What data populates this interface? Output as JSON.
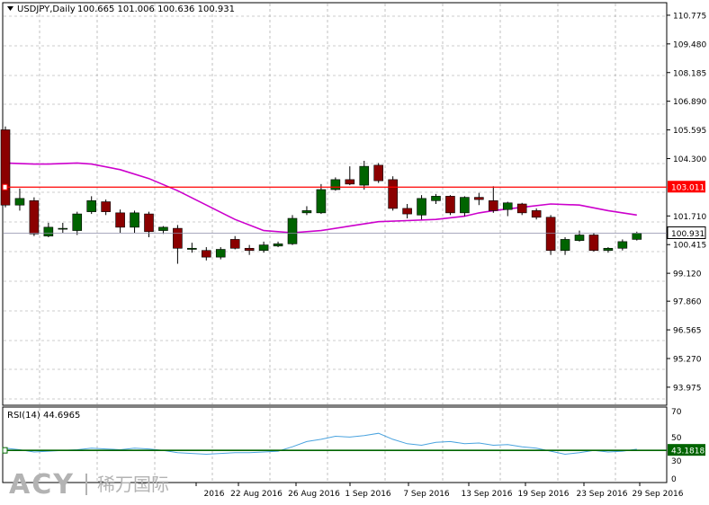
{
  "header": {
    "symbol_line": "USDJPY,Daily",
    "ohlc": "100.665 101.006 100.636 100.931"
  },
  "rsi": {
    "title": "RSI(14) 44.6965",
    "value_tag": "43.1818",
    "levels": [
      "70",
      "50",
      "30",
      "0"
    ]
  },
  "watermark": {
    "brand": "ACY",
    "chinese": "稀万国际"
  },
  "colors": {
    "bull": "#006400",
    "bear": "#8b0000",
    "wick": "#000000",
    "ma": "#cc00cc",
    "resistance": "#ff0000",
    "rsi_line": "#4aa3df",
    "rsi_level": "#006400",
    "grid": "#9a9a9a"
  },
  "chart_data": {
    "type": "candlestick",
    "y_ticks": [
      "110.775",
      "109.480",
      "108.185",
      "106.890",
      "105.595",
      "104.300",
      "103.011",
      "101.710",
      "100.931",
      "100.415",
      "99.120",
      "97.860",
      "96.565",
      "95.270",
      "93.975"
    ],
    "x_ticks": [
      "2016",
      "22 Aug 2016",
      "26 Aug 2016",
      "1 Sep 2016",
      "7 Sep 2016",
      "13 Sep 2016",
      "19 Sep 2016",
      "23 Sep 2016",
      "29 Sep 2016"
    ],
    "ylim": [
      93.2,
      111.3
    ],
    "resistance_level": 103.011,
    "current_price": 100.931,
    "candles": [
      {
        "o": 105.6,
        "h": 105.75,
        "l": 102.1,
        "c": 102.2
      },
      {
        "o": 102.2,
        "h": 102.95,
        "l": 101.95,
        "c": 102.5
      },
      {
        "o": 102.4,
        "h": 102.55,
        "l": 100.8,
        "c": 100.9
      },
      {
        "o": 100.8,
        "h": 101.4,
        "l": 100.75,
        "c": 101.2
      },
      {
        "o": 101.15,
        "h": 101.4,
        "l": 100.95,
        "c": 101.15
      },
      {
        "o": 101.05,
        "h": 101.9,
        "l": 100.85,
        "c": 101.8
      },
      {
        "o": 101.9,
        "h": 102.6,
        "l": 101.8,
        "c": 102.4
      },
      {
        "o": 102.35,
        "h": 102.45,
        "l": 101.75,
        "c": 101.9
      },
      {
        "o": 101.85,
        "h": 102.0,
        "l": 100.95,
        "c": 101.2
      },
      {
        "o": 101.2,
        "h": 101.95,
        "l": 100.95,
        "c": 101.85
      },
      {
        "o": 101.8,
        "h": 101.9,
        "l": 100.75,
        "c": 101.0
      },
      {
        "o": 101.05,
        "h": 101.25,
        "l": 100.9,
        "c": 101.2
      },
      {
        "o": 101.15,
        "h": 101.3,
        "l": 99.55,
        "c": 100.25
      },
      {
        "o": 100.2,
        "h": 100.5,
        "l": 100.05,
        "c": 100.25
      },
      {
        "o": 100.15,
        "h": 100.3,
        "l": 99.7,
        "c": 99.85
      },
      {
        "o": 99.85,
        "h": 100.3,
        "l": 99.75,
        "c": 100.2
      },
      {
        "o": 100.65,
        "h": 100.8,
        "l": 100.2,
        "c": 100.25
      },
      {
        "o": 100.25,
        "h": 100.4,
        "l": 99.95,
        "c": 100.15
      },
      {
        "o": 100.15,
        "h": 100.55,
        "l": 100.05,
        "c": 100.4
      },
      {
        "o": 100.35,
        "h": 100.55,
        "l": 100.3,
        "c": 100.45
      },
      {
        "o": 100.45,
        "h": 101.75,
        "l": 100.4,
        "c": 101.6
      },
      {
        "o": 101.85,
        "h": 102.15,
        "l": 101.75,
        "c": 101.95
      },
      {
        "o": 101.85,
        "h": 103.15,
        "l": 101.8,
        "c": 102.9
      },
      {
        "o": 102.9,
        "h": 103.45,
        "l": 102.85,
        "c": 103.35
      },
      {
        "o": 103.35,
        "h": 103.95,
        "l": 103.1,
        "c": 103.15
      },
      {
        "o": 103.1,
        "h": 104.2,
        "l": 102.9,
        "c": 103.95
      },
      {
        "o": 104.0,
        "h": 104.1,
        "l": 103.2,
        "c": 103.3
      },
      {
        "o": 103.35,
        "h": 103.5,
        "l": 101.95,
        "c": 102.05
      },
      {
        "o": 102.05,
        "h": 102.25,
        "l": 101.6,
        "c": 101.8
      },
      {
        "o": 101.75,
        "h": 102.65,
        "l": 101.55,
        "c": 102.5
      },
      {
        "o": 102.4,
        "h": 102.7,
        "l": 102.25,
        "c": 102.6
      },
      {
        "o": 102.6,
        "h": 102.65,
        "l": 101.75,
        "c": 101.85
      },
      {
        "o": 101.85,
        "h": 102.6,
        "l": 101.7,
        "c": 102.55
      },
      {
        "o": 102.55,
        "h": 102.75,
        "l": 102.2,
        "c": 102.45
      },
      {
        "o": 102.4,
        "h": 103.05,
        "l": 101.85,
        "c": 101.95
      },
      {
        "o": 102.0,
        "h": 102.35,
        "l": 101.7,
        "c": 102.3
      },
      {
        "o": 102.25,
        "h": 102.3,
        "l": 101.75,
        "c": 101.85
      },
      {
        "o": 101.95,
        "h": 102.05,
        "l": 101.55,
        "c": 101.65
      },
      {
        "o": 101.65,
        "h": 101.75,
        "l": 99.95,
        "c": 100.15
      },
      {
        "o": 100.15,
        "h": 100.75,
        "l": 99.95,
        "c": 100.65
      },
      {
        "o": 100.6,
        "h": 101.05,
        "l": 100.55,
        "c": 100.85
      },
      {
        "o": 100.85,
        "h": 100.95,
        "l": 100.1,
        "c": 100.15
      },
      {
        "o": 100.15,
        "h": 100.3,
        "l": 100.05,
        "c": 100.25
      },
      {
        "o": 100.25,
        "h": 100.65,
        "l": 100.15,
        "c": 100.55
      },
      {
        "o": 100.65,
        "h": 101.0,
        "l": 100.6,
        "c": 100.93
      }
    ],
    "ma_points": [
      [
        0,
        104.1
      ],
      [
        2,
        104.05
      ],
      [
        3,
        104.05
      ],
      [
        5,
        104.1
      ],
      [
        6,
        104.05
      ],
      [
        8,
        103.8
      ],
      [
        10,
        103.4
      ],
      [
        12,
        102.85
      ],
      [
        14,
        102.2
      ],
      [
        16,
        101.55
      ],
      [
        18,
        101.05
      ],
      [
        20,
        100.95
      ],
      [
        22,
        101.05
      ],
      [
        24,
        101.25
      ],
      [
        26,
        101.45
      ],
      [
        28,
        101.5
      ],
      [
        30,
        101.55
      ],
      [
        32,
        101.7
      ],
      [
        33,
        101.85
      ],
      [
        34,
        101.95
      ],
      [
        36,
        102.1
      ],
      [
        38,
        102.25
      ],
      [
        40,
        102.2
      ],
      [
        42,
        101.95
      ],
      [
        44,
        101.75
      ]
    ],
    "rsi_values": [
      46,
      44,
      41,
      42,
      43,
      44,
      46,
      45,
      44,
      46,
      45,
      43,
      40,
      39,
      38,
      39,
      40,
      40,
      41,
      42,
      48,
      55,
      58,
      62,
      61,
      63,
      66,
      58,
      52,
      50,
      54,
      55,
      52,
      53,
      50,
      51,
      48,
      46,
      42,
      38,
      40,
      43,
      41,
      42,
      44.7
    ],
    "rsi_levels": [
      70,
      50,
      30,
      0
    ],
    "rsi_level_line": 43.1818
  }
}
